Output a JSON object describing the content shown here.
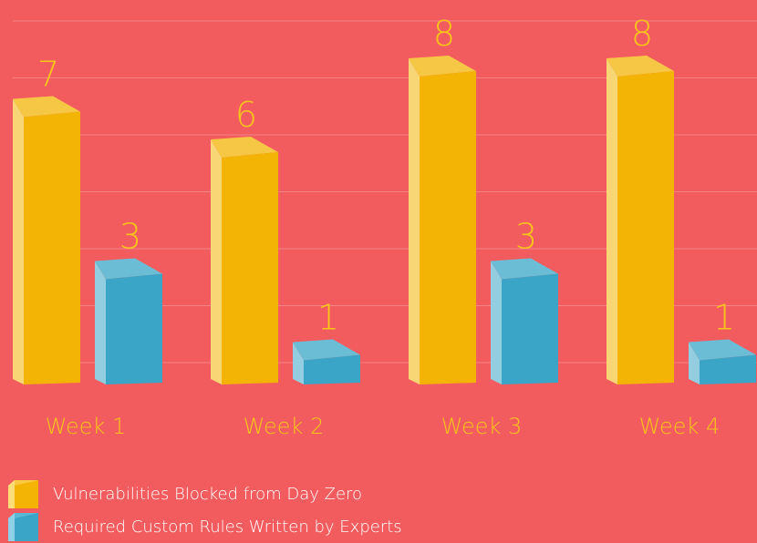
{
  "chart_data": {
    "type": "bar",
    "title": "",
    "xlabel": "",
    "ylabel": "",
    "categories": [
      "Week 1",
      "Week 2",
      "Week 3",
      "Week 4"
    ],
    "series": [
      {
        "name": "Vulnerabilities Blocked from Day Zero",
        "values": [
          7,
          6,
          8,
          8
        ],
        "color": "#F3B406"
      },
      {
        "name": "Required Custom Rules Written by Experts",
        "values": [
          3,
          1,
          3,
          1
        ],
        "color": "#3AA5C7"
      }
    ],
    "data_labels": true,
    "grid": true,
    "legend_position": "bottom-left"
  },
  "colors": {
    "background": "#F35C5F",
    "label_text": "#F8C61A",
    "legend_text": "#FFFFFF",
    "gridline": "#F58285"
  }
}
